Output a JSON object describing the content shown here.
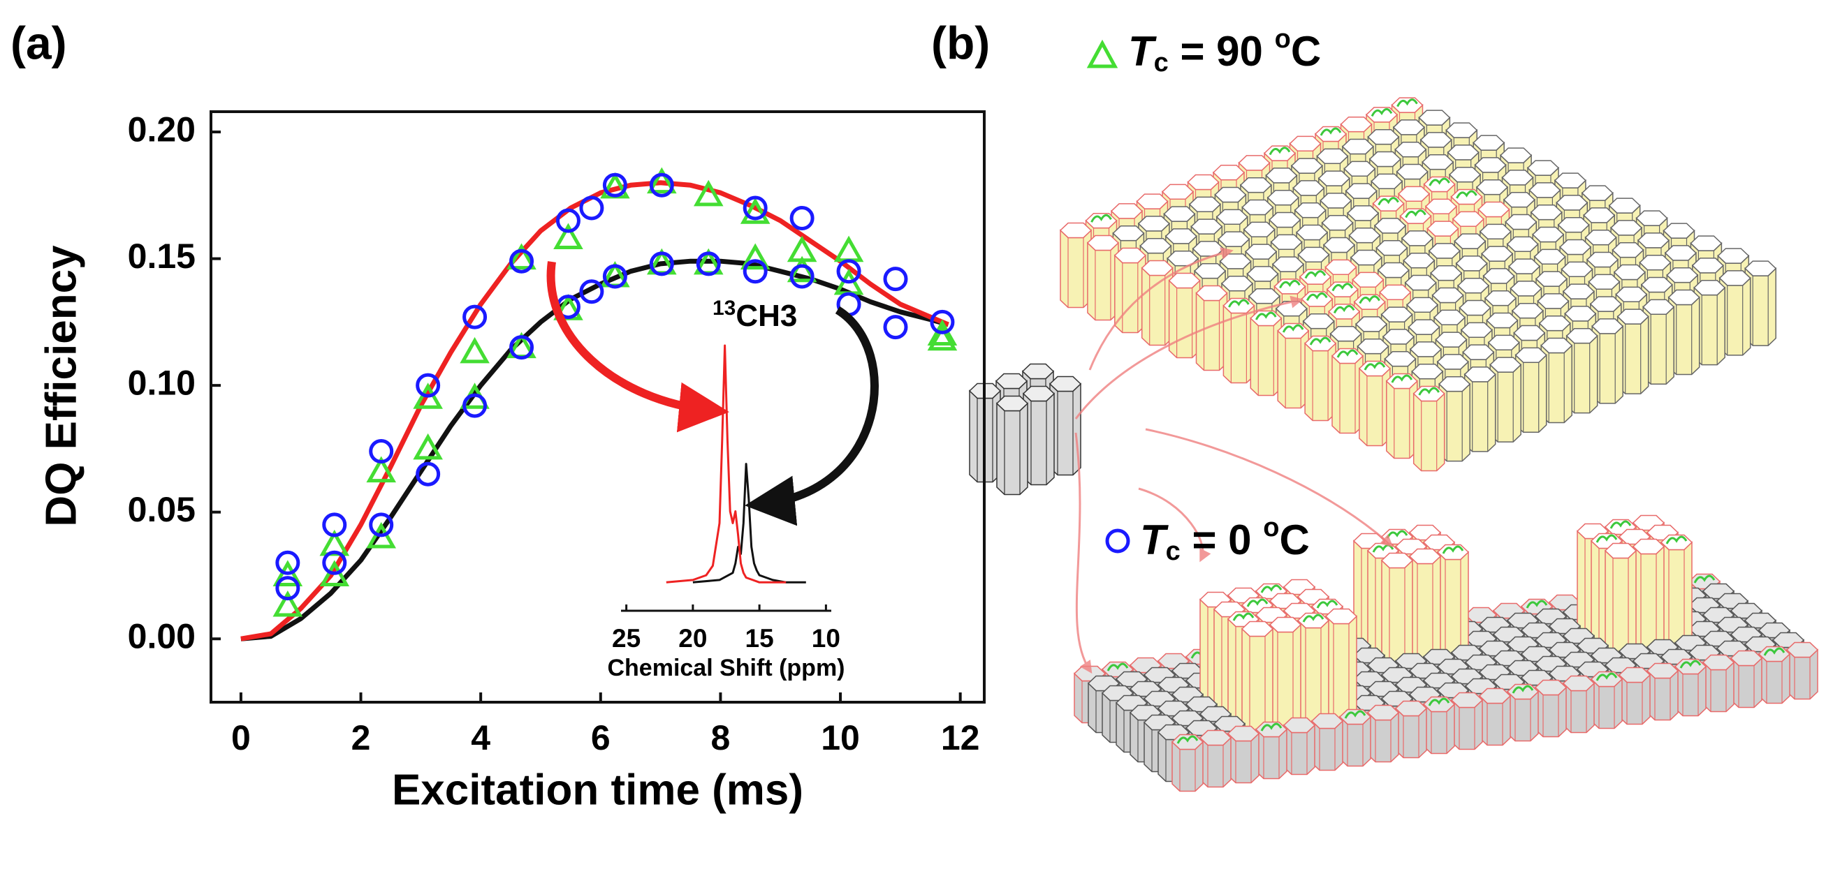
{
  "panel_labels": [
    "(a)",
    "(b)"
  ],
  "chart_data": [
    {
      "type": "scatter",
      "ylabel": "DQ Efficiency",
      "xlabel": "Excitation time (ms)",
      "xlim": [
        -0.5,
        12.4
      ],
      "ylim": [
        -0.025,
        0.208
      ],
      "xticks": [
        0,
        2,
        4,
        6,
        8,
        10,
        12
      ],
      "yticks": [
        {
          "value": 0,
          "label": "0.00"
        },
        {
          "value": 0.05,
          "label": "0.05"
        },
        {
          "value": 0.1,
          "label": "0.10"
        },
        {
          "value": 0.15,
          "label": "0.15"
        },
        {
          "value": 0.2,
          "label": "0.20"
        }
      ],
      "series": [
        {
          "kind": "line",
          "color": "#111111",
          "x": [
            0,
            0.5,
            1,
            1.5,
            2,
            2.5,
            3,
            3.5,
            4,
            4.5,
            5,
            5.5,
            6,
            6.5,
            7,
            7.5,
            8,
            8.5,
            9,
            9.5,
            10,
            10.5,
            11,
            11.5,
            11.8
          ],
          "values": [
            0,
            0.001,
            0.008,
            0.018,
            0.031,
            0.048,
            0.066,
            0.084,
            0.1,
            0.114,
            0.125,
            0.134,
            0.14,
            0.145,
            0.148,
            0.149,
            0.149,
            0.148,
            0.145,
            0.142,
            0.138,
            0.133,
            0.129,
            0.126,
            0.124
          ]
        },
        {
          "kind": "line",
          "color": "#ee2222",
          "x": [
            0,
            0.5,
            1,
            1.5,
            2,
            2.5,
            3,
            3.5,
            4,
            4.5,
            5,
            5.5,
            6,
            6.5,
            7,
            7.5,
            8,
            8.5,
            9,
            9.5,
            10,
            10.5,
            11,
            11.5,
            11.8
          ],
          "values": [
            0,
            0.002,
            0.012,
            0.025,
            0.045,
            0.068,
            0.092,
            0.113,
            0.132,
            0.148,
            0.161,
            0.17,
            0.176,
            0.179,
            0.18,
            0.179,
            0.176,
            0.171,
            0.165,
            0.157,
            0.149,
            0.14,
            0.132,
            0.127,
            0.124
          ]
        },
        {
          "kind": "triangle",
          "color": "#44dd33",
          "x": [
            0.78,
            1.56,
            2.34,
            3.12,
            3.9,
            4.68,
            5.46,
            6.24,
            7.02,
            7.8,
            8.58,
            9.36,
            10.14,
            11.7
          ],
          "values": [
            0.025,
            0.037,
            0.066,
            0.095,
            0.113,
            0.15,
            0.158,
            0.178,
            0.18,
            0.175,
            0.168,
            0.153,
            0.153,
            0.12
          ]
        },
        {
          "kind": "triangle",
          "color": "#44dd33",
          "x": [
            0.78,
            1.56,
            2.34,
            3.12,
            3.9,
            4.68,
            5.46,
            6.24,
            7.02,
            7.8,
            8.58,
            9.36,
            10.14,
            11.7
          ],
          "values": [
            0.013,
            0.025,
            0.04,
            0.075,
            0.095,
            0.115,
            0.13,
            0.143,
            0.148,
            0.148,
            0.15,
            0.145,
            0.14,
            0.118
          ]
        },
        {
          "kind": "circle",
          "color": "#1a1aff",
          "x": [
            0.78,
            1.56,
            2.34,
            3.12,
            3.9,
            4.68,
            5.46,
            5.85,
            6.24,
            7.02,
            8.58,
            9.36,
            10.14,
            10.92,
            11.7
          ],
          "values": [
            0.03,
            0.045,
            0.074,
            0.1,
            0.127,
            0.149,
            0.165,
            0.17,
            0.179,
            0.179,
            0.17,
            0.166,
            0.145,
            0.142,
            0.125
          ]
        },
        {
          "kind": "circle",
          "color": "#1a1aff",
          "x": [
            0.78,
            1.56,
            2.34,
            3.12,
            3.9,
            4.68,
            5.46,
            5.85,
            6.24,
            7.02,
            7.8,
            8.58,
            9.36,
            10.14,
            10.92
          ],
          "values": [
            0.02,
            0.03,
            0.045,
            0.065,
            0.092,
            0.115,
            0.131,
            0.137,
            0.143,
            0.148,
            0.148,
            0.145,
            0.143,
            0.132,
            0.123
          ]
        }
      ]
    },
    {
      "type": "line",
      "xlabel": "Chemical Shift (ppm)",
      "annotation_superscript": "13",
      "annotation": "CH3",
      "xlim": [
        25.4,
        9.6
      ],
      "ylim": [
        -0.12,
        1
      ],
      "xticks": [
        25,
        20,
        15,
        10
      ],
      "series": [
        {
          "color": "#111111",
          "x": [
            20,
            18,
            17,
            16.8,
            16.6,
            16.4,
            16.2,
            16,
            15.8,
            15.6,
            15.4,
            15.2,
            15,
            14.5,
            14,
            13,
            11.5
          ],
          "values": [
            0,
            0.01,
            0.04,
            0.08,
            0.15,
            0.12,
            0.25,
            0.5,
            0.35,
            0.15,
            0.08,
            0.05,
            0.03,
            0.02,
            0.01,
            0,
            0
          ]
        },
        {
          "color": "#ee2222",
          "x": [
            22,
            20,
            19,
            18.5,
            18,
            17.8,
            17.6,
            17.4,
            17.2,
            17,
            16.8,
            16.6,
            16.4,
            16.2,
            16,
            15.5,
            15,
            14,
            13
          ],
          "values": [
            0,
            0.01,
            0.03,
            0.07,
            0.25,
            0.6,
            1.0,
            0.6,
            0.3,
            0.25,
            0.3,
            0.2,
            0.08,
            0.04,
            0.02,
            0.01,
            0,
            0,
            0
          ]
        }
      ]
    }
  ],
  "diagram": {
    "legend": [
      {
        "italic": "T",
        "subscript": "c",
        "text": " = 90 ",
        "superscript": "o",
        "unit": "C"
      },
      {
        "italic": "T",
        "subscript": "c",
        "text": " = 0 ",
        "superscript": "o",
        "unit": "C"
      }
    ]
  }
}
